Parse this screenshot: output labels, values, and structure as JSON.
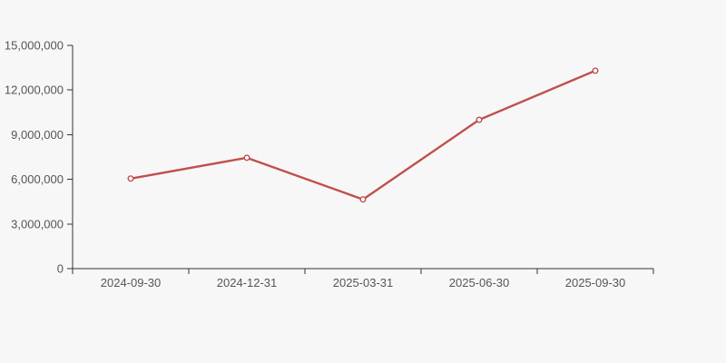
{
  "colors": {
    "background": "#f7f7f7",
    "line": "#c0504d",
    "marker_fill": "#ffffff",
    "axis": "#333333",
    "label": "#555555"
  },
  "chart_data": {
    "type": "line",
    "title": "",
    "xlabel": "",
    "ylabel": "",
    "categories": [
      "2024-09-30",
      "2024-12-31",
      "2025-03-31",
      "2025-06-30",
      "2025-09-30"
    ],
    "values": [
      6050000,
      7450000,
      4650000,
      10000000,
      13300000
    ],
    "ylim": [
      0,
      15000000
    ],
    "ytick_interval": 3000000,
    "ytick_labels": [
      "0",
      "3,000,000",
      "6,000,000",
      "9,000,000",
      "12,000,000",
      "15,000,000"
    ],
    "grid": false,
    "legend": "none",
    "marker": "open-circle"
  }
}
